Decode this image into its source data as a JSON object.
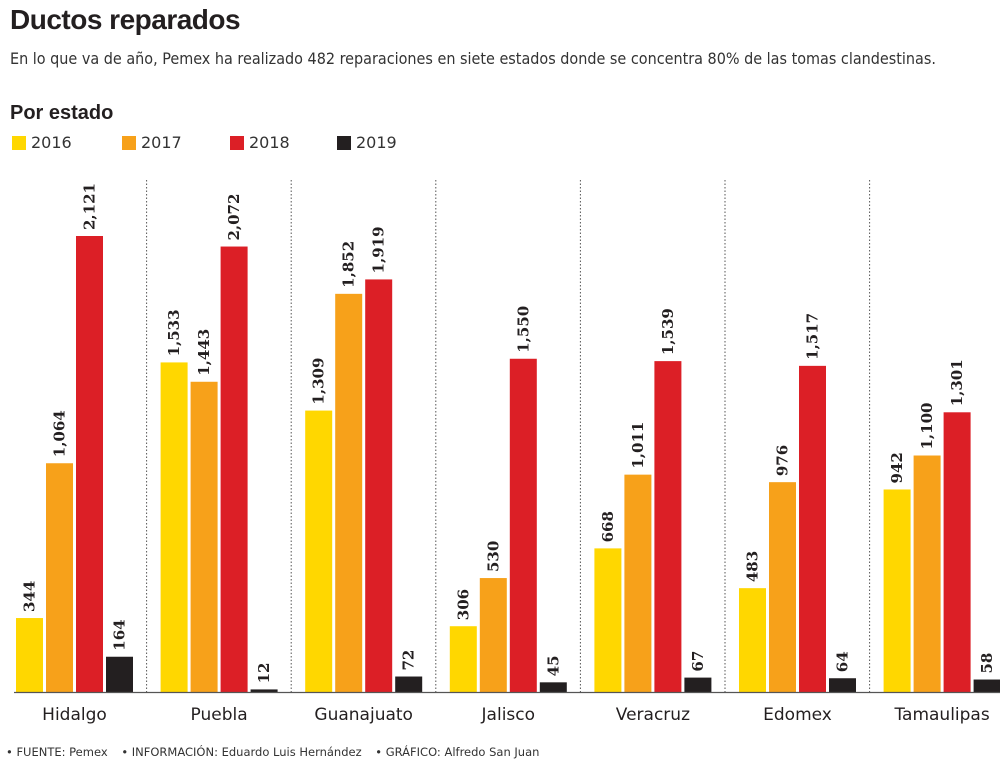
{
  "header": {
    "title": "Ductos reparados",
    "subtitle": "En lo que va de año, Pemex ha realizado 482 reparaciones en siete estados donde se concentra 80% de las tomas clandestinas.",
    "section": "Por estado"
  },
  "legend": [
    {
      "label": "2016",
      "color": "#ffd700"
    },
    {
      "label": "2017",
      "color": "#f7a11a"
    },
    {
      "label": "2018",
      "color": "#dc1f26"
    },
    {
      "label": "2019",
      "color": "#231f20"
    }
  ],
  "chart_data": {
    "type": "bar",
    "title": "Ductos reparados",
    "subtitle": "Por estado",
    "xlabel": "",
    "ylabel": "",
    "ylim": [
      0,
      2121
    ],
    "grid": false,
    "legend_position": "top-left",
    "categories": [
      "Hidalgo",
      "Puebla",
      "Guanajuato",
      "Jalisco",
      "Veracruz",
      "Edomex",
      "Tamaulipas"
    ],
    "series": [
      {
        "name": "2016",
        "color": "#ffd700",
        "values": [
          344,
          1533,
          1309,
          306,
          668,
          483,
          942
        ],
        "labels": [
          "344",
          "1,533",
          "1,309",
          "306",
          "668",
          "483",
          "942"
        ]
      },
      {
        "name": "2017",
        "color": "#f7a11a",
        "values": [
          1064,
          1443,
          1852,
          530,
          1011,
          976,
          1100
        ],
        "labels": [
          "1,064",
          "1,443",
          "1,852",
          "530",
          "1,011",
          "976",
          "1,100"
        ]
      },
      {
        "name": "2018",
        "color": "#dc1f26",
        "values": [
          2121,
          2072,
          1919,
          1550,
          1539,
          1517,
          1301
        ],
        "labels": [
          "2,121",
          "2,072",
          "1,919",
          "1,550",
          "1,539",
          "1,517",
          "1,301"
        ]
      },
      {
        "name": "2019",
        "color": "#231f20",
        "values": [
          164,
          12,
          72,
          45,
          67,
          64,
          58
        ],
        "labels": [
          "164",
          "12",
          "72",
          "45",
          "67",
          "64",
          "58"
        ]
      }
    ]
  },
  "footer": {
    "source": "• FUENTE: Pemex",
    "info": "• INFORMACIÓN: Eduardo Luis Hernández",
    "graphic": "• GRÁFICO: Alfredo San Juan"
  }
}
